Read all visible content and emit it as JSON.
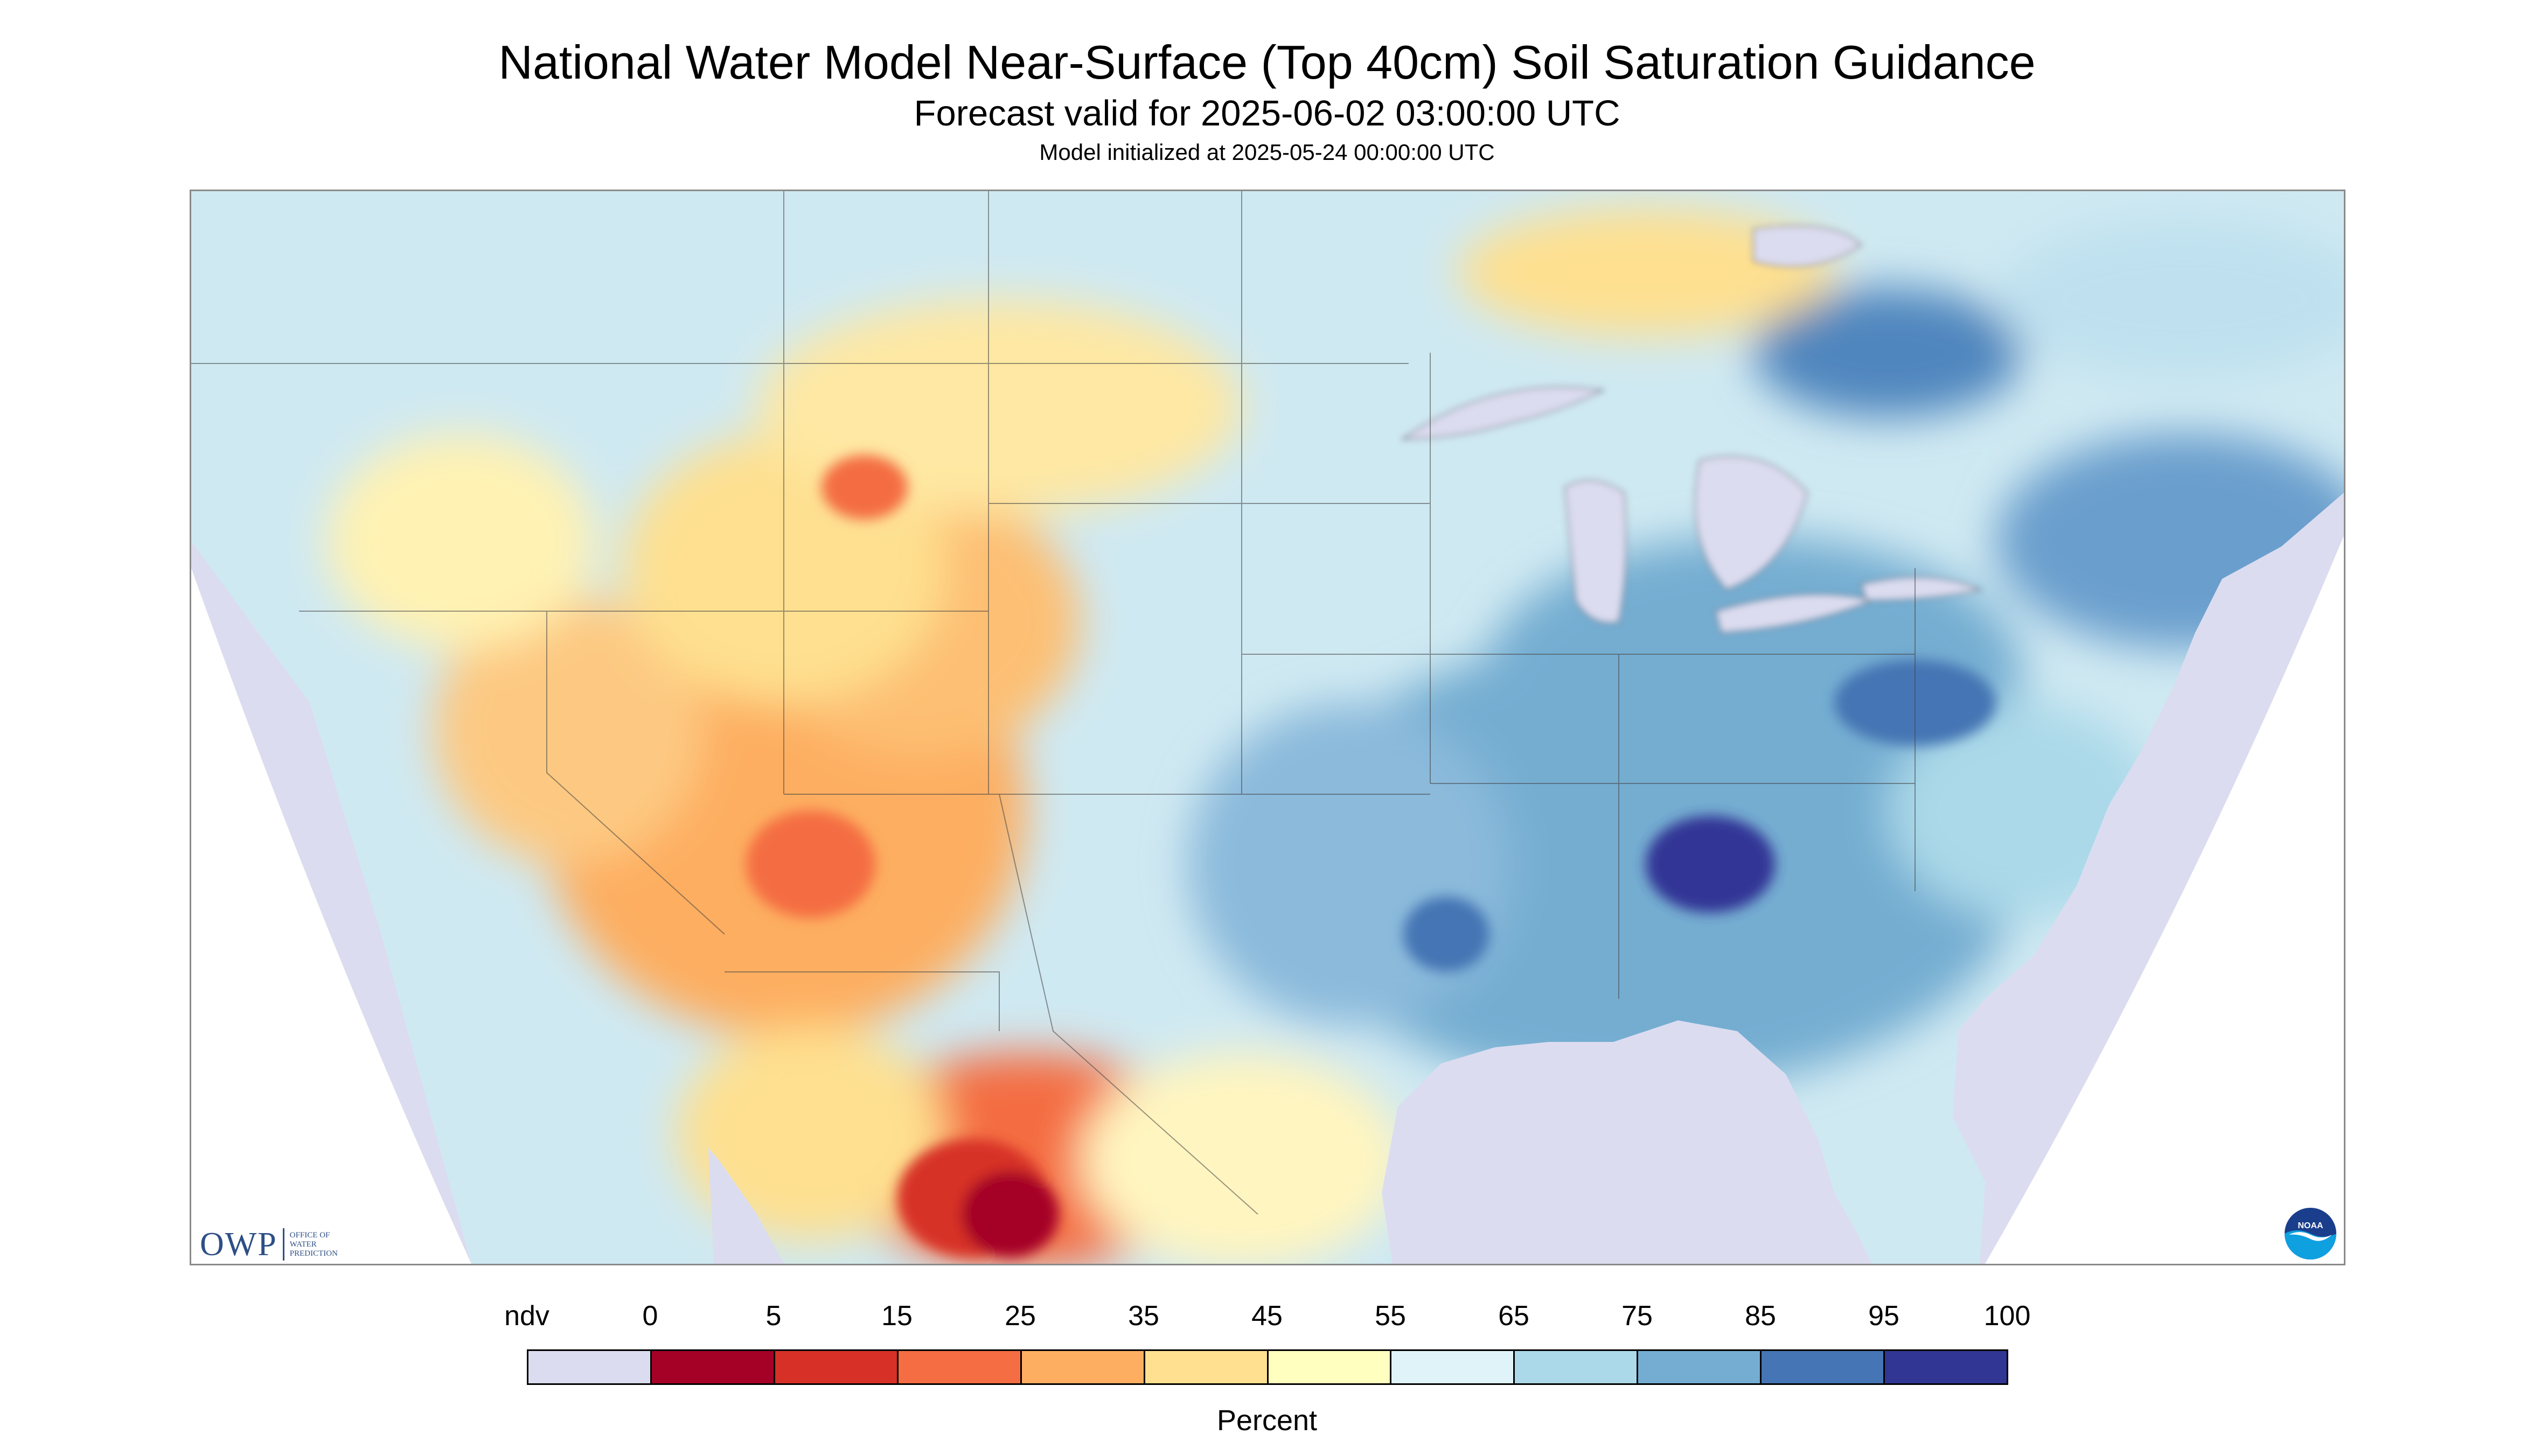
{
  "title": "National Water Model Near-Surface (Top 40cm) Soil Saturation Guidance",
  "subtitle": "Forecast valid for 2025-06-02 03:00:00 UTC",
  "model_init": "Model initialized at 2025-05-24 00:00:00 UTC",
  "map": {
    "region": "CONUS and surrounding areas",
    "background_color": "#dcdcf0",
    "ocean_color": "#dcdcf0"
  },
  "logos": {
    "owp_text": "OWP",
    "owp_sub": [
      "OFFICE OF",
      "WATER",
      "PREDICTION"
    ],
    "noaa_text": "NOAA"
  },
  "legend": {
    "labels": [
      "ndv",
      "0",
      "5",
      "15",
      "25",
      "35",
      "45",
      "55",
      "65",
      "75",
      "85",
      "95",
      "100"
    ],
    "colors": [
      "#dcdcf0",
      "#a50026",
      "#d73027",
      "#f46d43",
      "#fdae61",
      "#fee090",
      "#ffffbf",
      "#e0f3f8",
      "#abd9e9",
      "#74add1",
      "#4575b4",
      "#313695"
    ],
    "unit": "Percent"
  }
}
